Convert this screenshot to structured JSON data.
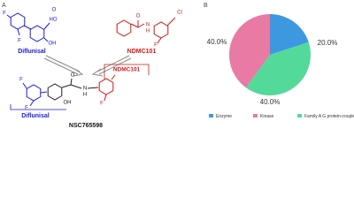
{
  "diagram": {
    "panel_label": "A",
    "diflunisal_label": "Diflunisal",
    "ndmc_label": "NDMC101",
    "product_ndmc_label": "NDMC101",
    "product_diflunisal_label": "Diflunisal",
    "product_label": "NSC765598",
    "atoms": [
      "F",
      "F",
      "HO",
      "O",
      "OH",
      "Cl",
      "O",
      "N",
      "H",
      "F",
      "F",
      "F",
      "O",
      "N",
      "H",
      "OH",
      "F"
    ]
  },
  "chart_data": {
    "type": "pie",
    "panel_label": "B",
    "categories": [
      "Enzyme",
      "Kinase",
      "Family A G protein-coupled receptor"
    ],
    "values": [
      20,
      40,
      40
    ],
    "value_labels": [
      "20.0%",
      "40.0%",
      "40.0%"
    ],
    "colors": [
      "#3d98e0",
      "#e87aa4",
      "#53d99a"
    ],
    "legend": "bottom"
  }
}
